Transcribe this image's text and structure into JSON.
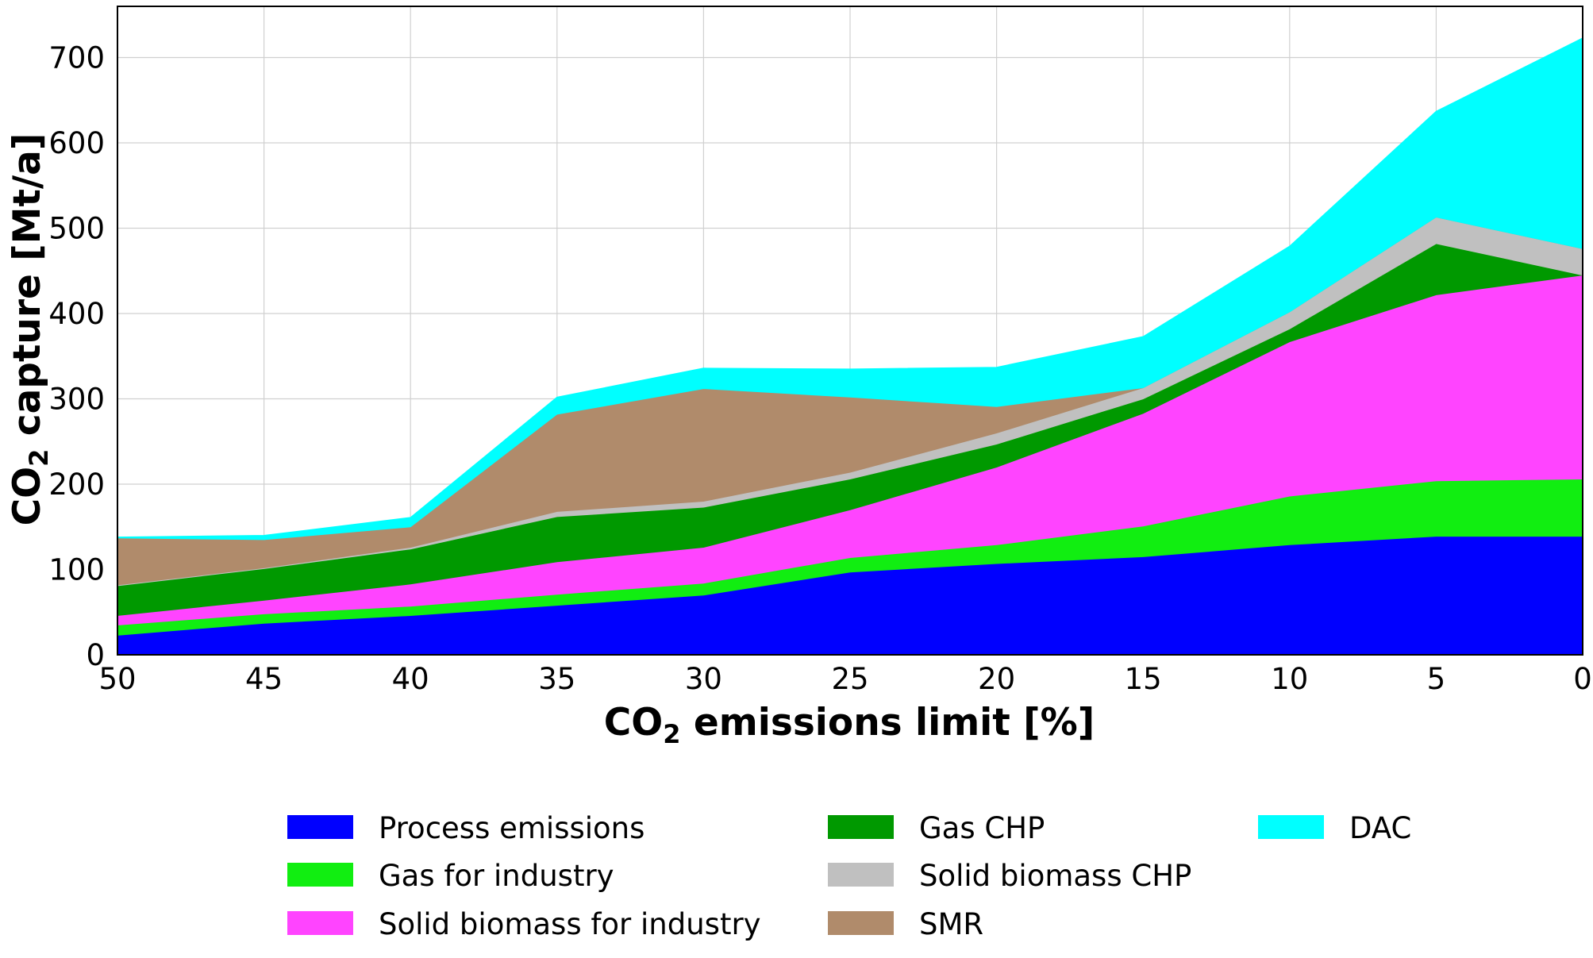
{
  "chart_data": {
    "type": "area",
    "stacked": true,
    "title": "",
    "xlabel": "CO2 emissions limit [%]",
    "xlabel_parts": {
      "pre": "CO",
      "sub": "2",
      "post": " emissions limit [%]"
    },
    "ylabel": "CO2 capture [Mt/a]",
    "ylabel_parts": {
      "pre": "CO",
      "sub": "2",
      "post": " capture [Mt/a]"
    },
    "x": [
      50,
      45,
      40,
      35,
      30,
      25,
      20,
      15,
      10,
      5,
      0
    ],
    "x_tick_labels": [
      "50",
      "45",
      "40",
      "35",
      "30",
      "25",
      "20",
      "15",
      "10",
      "5",
      "0"
    ],
    "xlim": [
      50,
      0
    ],
    "ylim": [
      0,
      760
    ],
    "y_ticks": [
      0,
      100,
      200,
      300,
      400,
      500,
      600,
      700
    ],
    "y_tick_labels": [
      "0",
      "100",
      "200",
      "300",
      "400",
      "500",
      "600",
      "700"
    ],
    "grid": true,
    "legend_position": "bottom-center",
    "series": [
      {
        "name": "Process emissions",
        "color": "#0000ff",
        "values": [
          23,
          37,
          46,
          58,
          70,
          97,
          107,
          115,
          129,
          139,
          139
        ]
      },
      {
        "name": "Gas for industry",
        "color": "#11ee11",
        "values": [
          12,
          11,
          11,
          13,
          14,
          17,
          22,
          36,
          57,
          65,
          67
        ]
      },
      {
        "name": "Solid biomass for industry",
        "color": "#ff44ff",
        "values": [
          11,
          16,
          26,
          38,
          42,
          56,
          91,
          132,
          181,
          218,
          239
        ]
      },
      {
        "name": "Gas CHP",
        "color": "#009900",
        "values": [
          35,
          37,
          41,
          53,
          47,
          36,
          27,
          17,
          15,
          60,
          0
        ]
      },
      {
        "name": "Solid biomass CHP",
        "color": "#c0c0c0",
        "values": [
          1,
          1,
          2,
          6,
          7,
          8,
          13,
          13,
          20,
          31,
          31
        ]
      },
      {
        "name": "SMR",
        "color": "#b08b6b",
        "values": [
          55,
          33,
          24,
          114,
          132,
          88,
          31,
          0,
          0,
          0,
          0
        ]
      },
      {
        "name": "DAC",
        "color": "#00ffff",
        "values": [
          1,
          5,
          11,
          20,
          24,
          33,
          46,
          60,
          77,
          124,
          247
        ]
      }
    ]
  }
}
